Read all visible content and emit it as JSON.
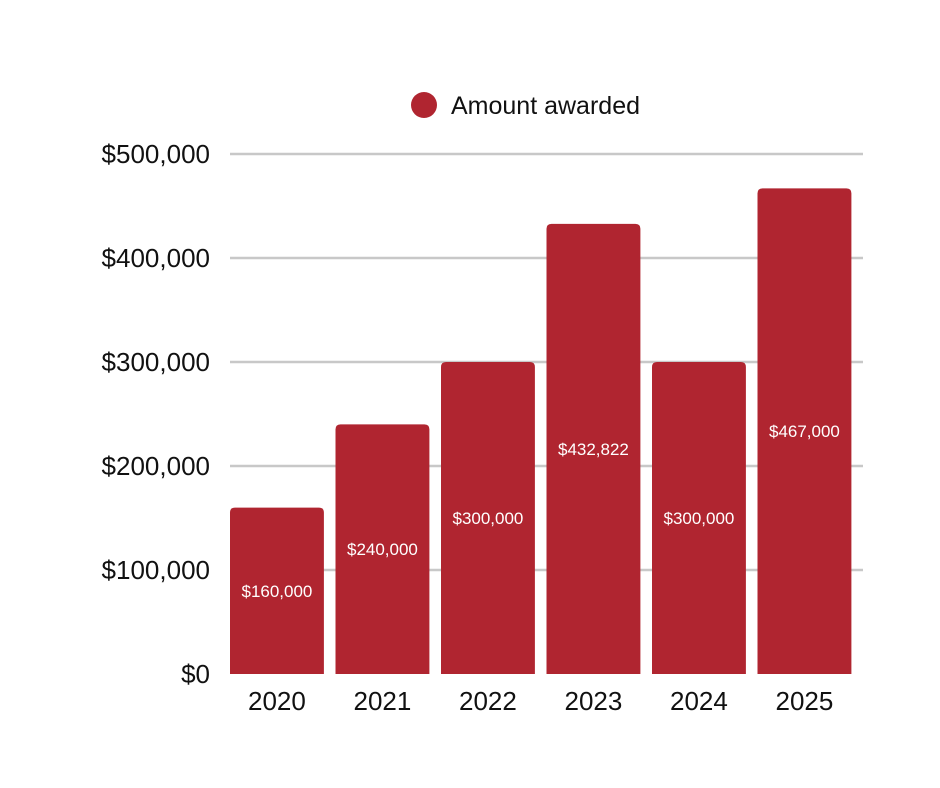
{
  "legend": {
    "label": "Amount awarded"
  },
  "colors": {
    "bar": "#b02530",
    "grid": "#c8c8c8",
    "text": "#111111",
    "data_label": "#ffffff",
    "background": "#ffffff"
  },
  "chart_data": {
    "type": "bar",
    "title": "",
    "xlabel": "",
    "ylabel": "",
    "categories": [
      "2020",
      "2021",
      "2022",
      "2023",
      "2024",
      "2025"
    ],
    "series": [
      {
        "name": "Amount awarded",
        "values": [
          160000,
          240000,
          300000,
          432822,
          300000,
          467000
        ],
        "data_labels": [
          "$160,000",
          "$240,000",
          "$300,000",
          "$432,822",
          "$300,000",
          "$467,000"
        ]
      }
    ],
    "ylim": [
      0,
      500000
    ],
    "y_ticks": [
      0,
      100000,
      200000,
      300000,
      400000,
      500000
    ],
    "y_tick_labels": [
      "$0",
      "$100,000",
      "$200,000",
      "$300,000",
      "$400,000",
      "$500,000"
    ],
    "grid": true,
    "legend_position": "top-center"
  }
}
